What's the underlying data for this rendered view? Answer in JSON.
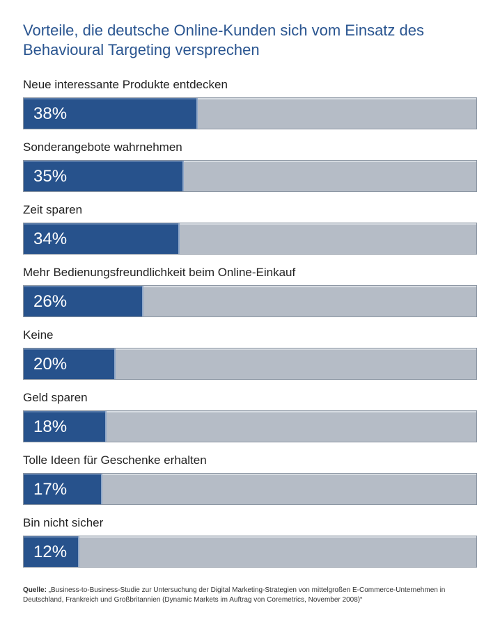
{
  "chart_data": {
    "type": "bar",
    "orientation": "horizontal",
    "title": "Vorteile, die deutsche Online-Kunden sich vom Einsatz des Behavioural Targeting versprechen",
    "categories": [
      "Neue interessante Produkte entdecken",
      "Sonderangebote wahrnehmen",
      "Zeit sparen",
      "Mehr Bedienungsfreundlichkeit beim Online-Einkauf",
      "Keine",
      "Geld sparen",
      "Tolle Ideen für Geschenke erhalten",
      "Bin nicht sicher"
    ],
    "values": [
      38,
      35,
      34,
      26,
      20,
      18,
      17,
      12
    ],
    "value_labels": [
      "38%",
      "35%",
      "34%",
      "26%",
      "20%",
      "18%",
      "17%",
      "12%"
    ],
    "xlim": [
      0,
      100
    ],
    "unit": "%",
    "colors": {
      "fill": "#27528c",
      "track": "#b5bcc6",
      "title": "#2a5590"
    }
  },
  "source": {
    "label": "Quelle:",
    "text": " „Business-to-Business-Studie zur Untersuchung der Digital Marketing-Strategien von mittelgroßen E-Commerce-Unternehmen in Deutschland, Frankreich und Großbritannien (Dynamic Markets im Auftrag von Coremetrics, November 2008)“"
  }
}
